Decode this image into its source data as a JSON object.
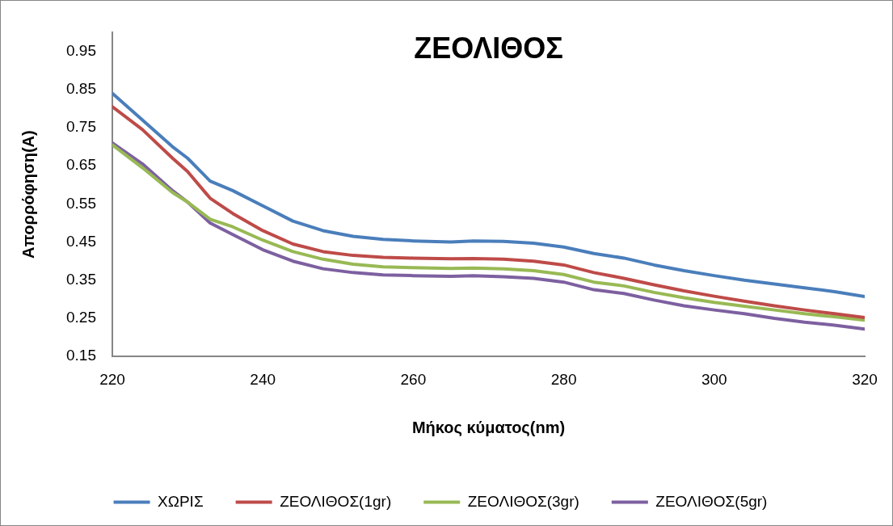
{
  "chart_data": {
    "type": "line",
    "title": "ΖΕΟΛΙΘΟΣ",
    "xlabel": "Μήκος κύματος(nm)",
    "ylabel": "Απορρόφηση(A)",
    "x": [
      220,
      224,
      228,
      230,
      233,
      236,
      240,
      244,
      248,
      252,
      256,
      260,
      265,
      268,
      272,
      276,
      280,
      284,
      288,
      292,
      296,
      300,
      304,
      308,
      312,
      316,
      320
    ],
    "series": [
      {
        "name": "ΧΩΡΙΣ",
        "color": "#4a7ebb",
        "values": [
          0.84,
          0.77,
          0.7,
          0.67,
          0.61,
          0.585,
          0.545,
          0.505,
          0.48,
          0.465,
          0.457,
          0.453,
          0.45,
          0.453,
          0.452,
          0.447,
          0.437,
          0.42,
          0.408,
          0.39,
          0.375,
          0.362,
          0.35,
          0.34,
          0.33,
          0.32,
          0.307
        ]
      },
      {
        "name": "ΖΕΟΛΙΘΟΣ(1gr)",
        "color": "#be4b48",
        "values": [
          0.805,
          0.745,
          0.67,
          0.635,
          0.565,
          0.525,
          0.48,
          0.445,
          0.425,
          0.415,
          0.41,
          0.408,
          0.406,
          0.407,
          0.405,
          0.4,
          0.39,
          0.37,
          0.355,
          0.338,
          0.322,
          0.308,
          0.295,
          0.283,
          0.272,
          0.262,
          0.252
        ]
      },
      {
        "name": "ΖΕΟΛΙΘΟΣ(3gr)",
        "color": "#98b954",
        "values": [
          0.705,
          0.645,
          0.58,
          0.555,
          0.51,
          0.49,
          0.455,
          0.425,
          0.405,
          0.392,
          0.385,
          0.383,
          0.381,
          0.382,
          0.38,
          0.375,
          0.365,
          0.345,
          0.335,
          0.318,
          0.304,
          0.292,
          0.282,
          0.272,
          0.262,
          0.254,
          0.245
        ]
      },
      {
        "name": "ΖΕΟΛΙΘΟΣ(5gr)",
        "color": "#7d60a0",
        "values": [
          0.71,
          0.655,
          0.585,
          0.555,
          0.5,
          0.47,
          0.43,
          0.4,
          0.38,
          0.37,
          0.364,
          0.362,
          0.36,
          0.362,
          0.359,
          0.355,
          0.345,
          0.325,
          0.315,
          0.298,
          0.283,
          0.272,
          0.262,
          0.25,
          0.24,
          0.232,
          0.222
        ]
      }
    ],
    "xlim": [
      220,
      320
    ],
    "xticks": [
      220,
      240,
      260,
      280,
      300,
      320
    ],
    "ylim": [
      0.15,
      1.0
    ],
    "yticks": [
      0.15,
      0.25,
      0.35,
      0.45,
      0.55,
      0.65,
      0.75,
      0.85,
      0.95
    ],
    "grid": false,
    "legend": "bottom",
    "marker": "none",
    "line_style": "solid"
  }
}
